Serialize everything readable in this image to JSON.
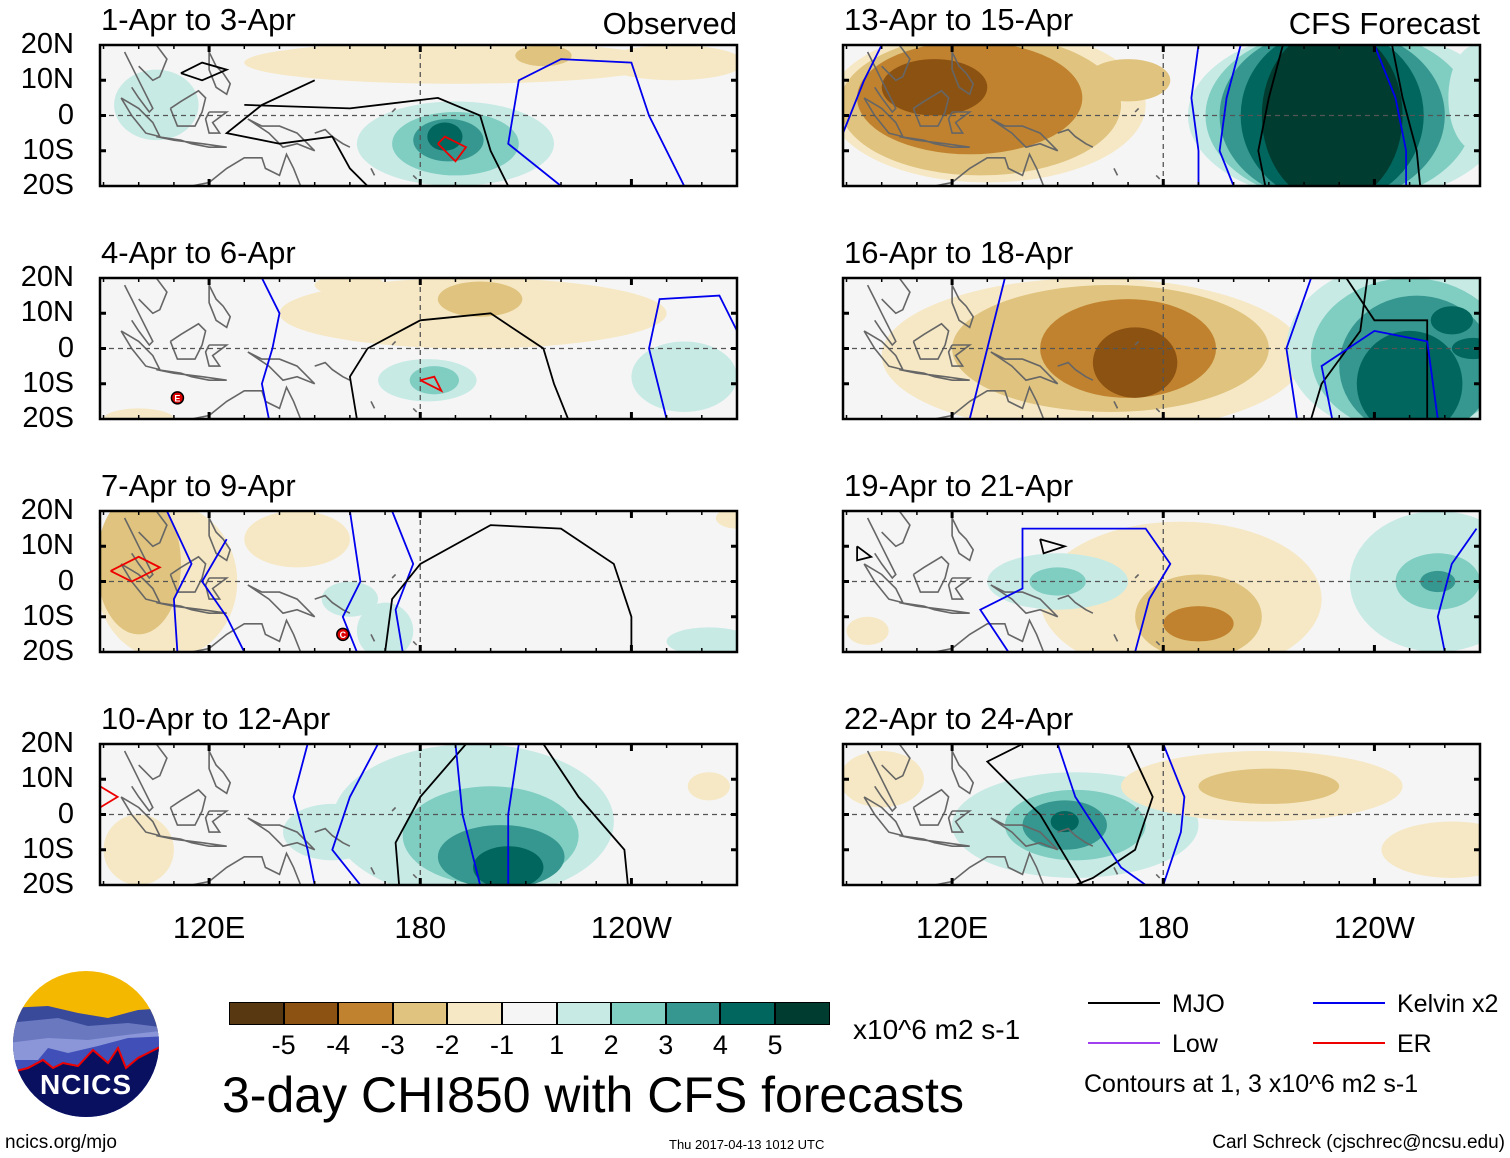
{
  "chart_data": {
    "type": "heatmap",
    "title": "3-day CHI850 with CFS forecasts",
    "variable": "CHI850 anomaly",
    "units": "x10^6 m2 s-1",
    "panels": [
      {
        "label": "1-Apr to 3-Apr",
        "tag": "Observed",
        "column": "left"
      },
      {
        "label": "4-Apr to 6-Apr",
        "column": "left",
        "storm": "E"
      },
      {
        "label": "7-Apr to 9-Apr",
        "column": "left",
        "storm": "C"
      },
      {
        "label": "10-Apr to 12-Apr",
        "column": "left"
      },
      {
        "label": "13-Apr to 15-Apr",
        "tag": "CFS Forecast",
        "column": "right"
      },
      {
        "label": "16-Apr to 18-Apr",
        "column": "right"
      },
      {
        "label": "19-Apr to 21-Apr",
        "column": "right"
      },
      {
        "label": "22-Apr to 24-Apr",
        "column": "right"
      }
    ],
    "lat_ticks": [
      "20N",
      "10N",
      "0",
      "10S",
      "20S"
    ],
    "lon_ticks": [
      "120E",
      "180",
      "120W"
    ],
    "colorbar": {
      "labels": [
        "-5",
        "-4",
        "-3",
        "-2",
        "-1",
        "1",
        "2",
        "3",
        "4",
        "5"
      ],
      "colors": [
        "#583810",
        "#8c5212",
        "#c0822e",
        "#dfc37e",
        "#f6e8c4",
        "#f5f5f5",
        "#c7eae5",
        "#80cdc1",
        "#35978f",
        "#01665e",
        "#003c30"
      ],
      "units": "x10^6 m2 s-1"
    },
    "legend": [
      {
        "label": "MJO",
        "color": "#000000"
      },
      {
        "label": "Kelvin x2",
        "color": "#0000ee"
      },
      {
        "label": "Low",
        "color": "#a040ee"
      },
      {
        "label": "ER",
        "color": "#ee0000"
      }
    ],
    "contour_note": "Contours at 1, 3 x10^6 m2 s-1"
  },
  "footer": {
    "logo_text": "NCICS",
    "site": "ncics.org/mjo",
    "timestamp": "Thu 2017-04-13 1012 UTC",
    "author": "Carl Schreck (cjschrec@ncsu.edu)"
  }
}
